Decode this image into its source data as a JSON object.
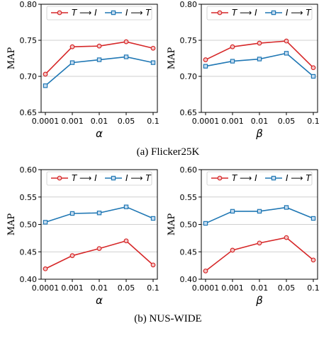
{
  "colors": {
    "t2i": "#d62728",
    "i2t": "#1f77b4"
  },
  "captions": [
    "(a)  Flicker25K",
    "(b)  NUS-WIDE"
  ],
  "chart_data": [
    {
      "type": "line",
      "categories": [
        "0.0001",
        "0.001",
        "0.01",
        "0.05",
        "0.1"
      ],
      "xlabel": "α",
      "ylabel": "MAP",
      "ylim": [
        0.65,
        0.8
      ],
      "yticks": [
        "0.65",
        "0.70",
        "0.75",
        "0.80"
      ],
      "grid": true,
      "legend": "top",
      "series": [
        {
          "name": "T ⟶ I",
          "marker": "circle",
          "values": [
            0.703,
            0.741,
            0.742,
            0.748,
            0.739
          ]
        },
        {
          "name": "I ⟶ T",
          "marker": "square",
          "values": [
            0.687,
            0.719,
            0.723,
            0.727,
            0.719
          ]
        }
      ]
    },
    {
      "type": "line",
      "categories": [
        "0.0001",
        "0.001",
        "0.01",
        "0.05",
        "0.1"
      ],
      "xlabel": "β",
      "ylabel": "MAP",
      "ylim": [
        0.65,
        0.8
      ],
      "yticks": [
        "0.65",
        "0.70",
        "0.75",
        "0.80"
      ],
      "grid": true,
      "legend": "top",
      "series": [
        {
          "name": "T ⟶ I",
          "marker": "circle",
          "values": [
            0.723,
            0.741,
            0.746,
            0.749,
            0.712
          ]
        },
        {
          "name": "I ⟶ T",
          "marker": "square",
          "values": [
            0.714,
            0.721,
            0.724,
            0.732,
            0.7
          ]
        }
      ]
    },
    {
      "type": "line",
      "categories": [
        "0.0001",
        "0.001",
        "0.01",
        "0.05",
        "0.1"
      ],
      "xlabel": "α",
      "ylabel": "MAP",
      "ylim": [
        0.4,
        0.6
      ],
      "yticks": [
        "0.40",
        "0.45",
        "0.50",
        "0.55",
        "0.60"
      ],
      "grid": true,
      "legend": "top",
      "series": [
        {
          "name": "T ⟶ I",
          "marker": "circle",
          "values": [
            0.419,
            0.443,
            0.456,
            0.47,
            0.426
          ]
        },
        {
          "name": "I ⟶ T",
          "marker": "square",
          "values": [
            0.504,
            0.52,
            0.521,
            0.532,
            0.511
          ]
        }
      ]
    },
    {
      "type": "line",
      "categories": [
        "0.0001",
        "0.001",
        "0.01",
        "0.05",
        "0.1"
      ],
      "xlabel": "β",
      "ylabel": "MAP",
      "ylim": [
        0.4,
        0.6
      ],
      "yticks": [
        "0.40",
        "0.45",
        "0.50",
        "0.55",
        "0.60"
      ],
      "grid": true,
      "legend": "top",
      "series": [
        {
          "name": "T ⟶ I",
          "marker": "circle",
          "values": [
            0.415,
            0.453,
            0.466,
            0.476,
            0.435
          ]
        },
        {
          "name": "I ⟶ T",
          "marker": "square",
          "values": [
            0.502,
            0.524,
            0.524,
            0.531,
            0.511
          ]
        }
      ]
    }
  ]
}
